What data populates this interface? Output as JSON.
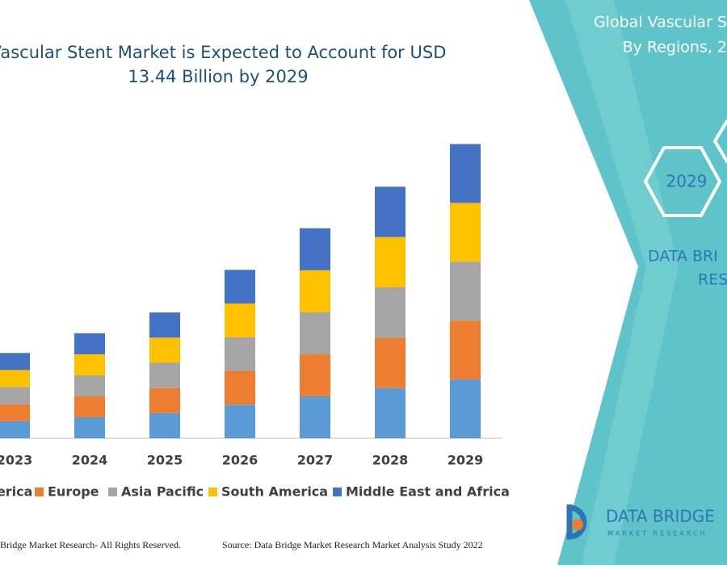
{
  "chart_data": {
    "type": "stacked_bar",
    "title": [
      "Vascular Stent Market is Expected to Account for USD",
      "13.44 Billion by 2029"
    ],
    "categories": [
      "2023",
      "2024",
      "2025",
      "2026",
      "2027",
      "2028",
      "2029"
    ],
    "series": [
      {
        "name": "North America",
        "color": "#5b9bd5",
        "values": [
          0.78,
          0.96,
          1.15,
          1.54,
          1.92,
          2.3,
          2.69
        ]
      },
      {
        "name": "Europe",
        "color": "#ed7d31",
        "values": [
          0.78,
          0.96,
          1.15,
          1.54,
          1.92,
          2.3,
          2.69
        ]
      },
      {
        "name": "Asia Pacific",
        "color": "#a5a5a5",
        "values": [
          0.78,
          0.96,
          1.15,
          1.54,
          1.92,
          2.3,
          2.69
        ]
      },
      {
        "name": "South America",
        "color": "#ffc000",
        "values": [
          0.78,
          0.96,
          1.15,
          1.54,
          1.92,
          2.3,
          2.69
        ]
      },
      {
        "name": "Middle East and Africa",
        "color": "#4472c4",
        "values": [
          0.78,
          0.96,
          1.15,
          1.54,
          1.92,
          2.3,
          2.69
        ]
      }
    ],
    "ylim": [
      0,
      14.5
    ]
  },
  "side_panel": {
    "heading": [
      "Global Vascular S",
      "By Regions, 2"
    ],
    "hexagon": "2029",
    "brand": [
      "DATA BRI",
      "RES"
    ]
  },
  "footer": {
    "copyright": "Bridge Market Research- All Rights Reserved.",
    "source": "Source: Data Bridge Market Research Market Analysis Study 2022"
  },
  "logo": {
    "name": "DATA BRIDGE",
    "tagline": "MARKET RESEARCH"
  }
}
